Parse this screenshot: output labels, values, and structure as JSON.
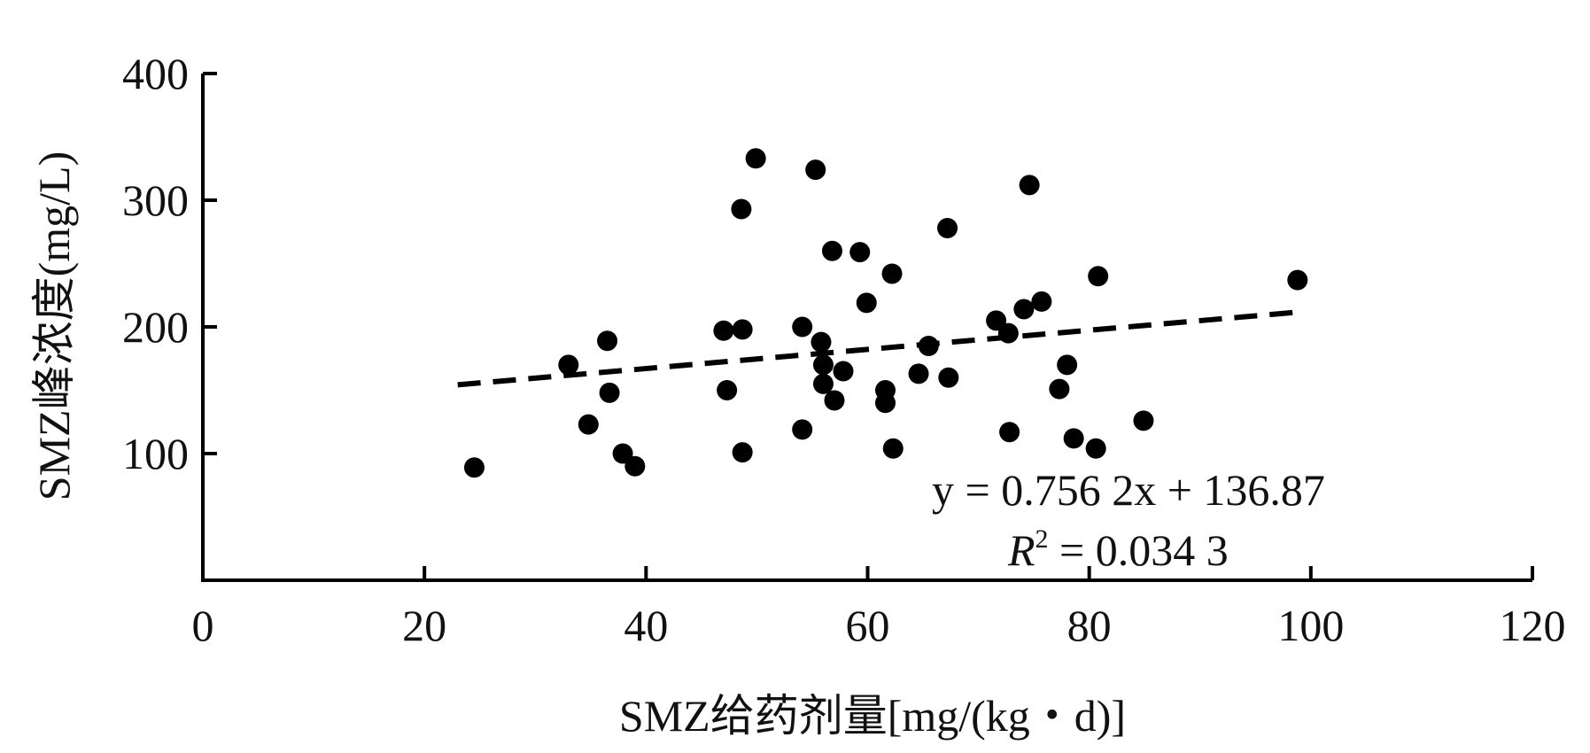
{
  "chart_data": {
    "type": "scatter",
    "xlabel": "SMZ给药剂量[mg/(kg・d)]",
    "ylabel": "SMZ峰浓度(mg/L)",
    "xlim": [
      0,
      120
    ],
    "ylim": [
      0,
      400
    ],
    "x_ticks": [
      0,
      20,
      40,
      60,
      80,
      100,
      120
    ],
    "y_ticks": [
      100,
      200,
      300,
      400
    ],
    "grid": false,
    "point_color": "#000000",
    "series": [
      {
        "points": [
          [
            24.5,
            89
          ],
          [
            33.0,
            170
          ],
          [
            34.8,
            123
          ],
          [
            36.5,
            189
          ],
          [
            36.7,
            148
          ],
          [
            37.9,
            100
          ],
          [
            39.0,
            90
          ],
          [
            47.0,
            197
          ],
          [
            47.3,
            150
          ],
          [
            48.7,
            198
          ],
          [
            48.6,
            293
          ],
          [
            48.7,
            101
          ],
          [
            49.9,
            333
          ],
          [
            54.1,
            200
          ],
          [
            54.1,
            119
          ],
          [
            55.3,
            324
          ],
          [
            55.8,
            188
          ],
          [
            56.0,
            170
          ],
          [
            56.0,
            155
          ],
          [
            56.8,
            260
          ],
          [
            57.0,
            142
          ],
          [
            57.8,
            165
          ],
          [
            59.3,
            259
          ],
          [
            59.9,
            219
          ],
          [
            61.6,
            150
          ],
          [
            61.6,
            140
          ],
          [
            62.2,
            242
          ],
          [
            62.3,
            104
          ],
          [
            64.6,
            163
          ],
          [
            65.5,
            185
          ],
          [
            67.2,
            278
          ],
          [
            67.3,
            160
          ],
          [
            71.6,
            205
          ],
          [
            72.7,
            195
          ],
          [
            72.8,
            117
          ],
          [
            74.1,
            214
          ],
          [
            74.6,
            312
          ],
          [
            75.7,
            220
          ],
          [
            77.3,
            151
          ],
          [
            78.0,
            170
          ],
          [
            78.6,
            112
          ],
          [
            80.6,
            104
          ],
          [
            80.8,
            240
          ],
          [
            84.9,
            126
          ],
          [
            98.8,
            237
          ]
        ]
      }
    ],
    "trendline": {
      "slope": 0.7562,
      "intercept": 136.87,
      "x_range": [
        23,
        99
      ],
      "style": "dashed"
    },
    "annotations": {
      "equation": "y = 0.756 2x + 136.87",
      "r2_label": "R",
      "r2_sup": "2",
      "r2_value": " = 0.034 3"
    }
  }
}
